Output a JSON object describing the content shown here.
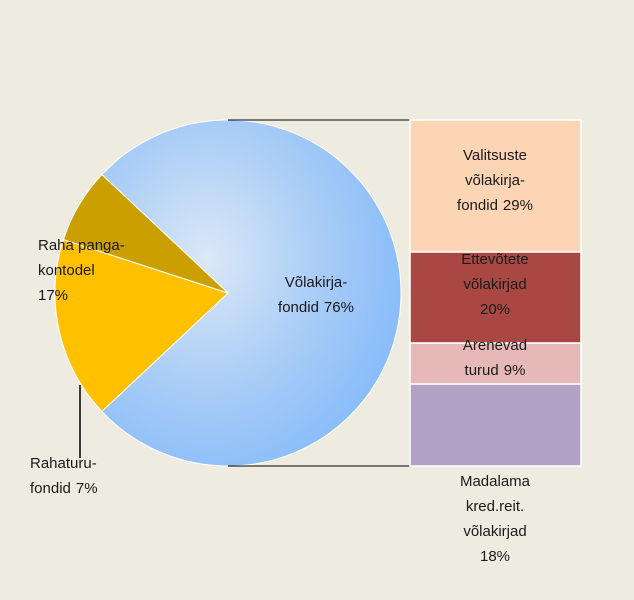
{
  "chart_data": {
    "type": "pie-of-bar",
    "pie": {
      "categories": [
        [
          "Võlakirja-",
          "fondid"
        ],
        [
          "Raha panga-",
          "kontodel"
        ],
        [
          "Rahaturu-",
          "fondid"
        ]
      ],
      "values": [
        76,
        17,
        7
      ],
      "value_labels": [
        "76%",
        "17%",
        "7%"
      ],
      "colors": [
        "#8fbef5",
        "#ffc000",
        "#cc9f00"
      ]
    },
    "bar": {
      "categories": [
        [
          "Valitsuste",
          "võlakirja-",
          "fondid"
        ],
        [
          "Ettevõtete",
          "võlakirjad"
        ],
        [
          "Arenevad",
          "turud"
        ],
        [
          "Madalama",
          "kred.reit.",
          "võlakirjad"
        ]
      ],
      "values": [
        29,
        20,
        9,
        18
      ],
      "value_labels": [
        "29%",
        "20%",
        "9%",
        "18%"
      ],
      "colors": [
        "#fcd5b5",
        "#a94743",
        "#e6b9b8",
        "#b3a2c7"
      ]
    }
  }
}
